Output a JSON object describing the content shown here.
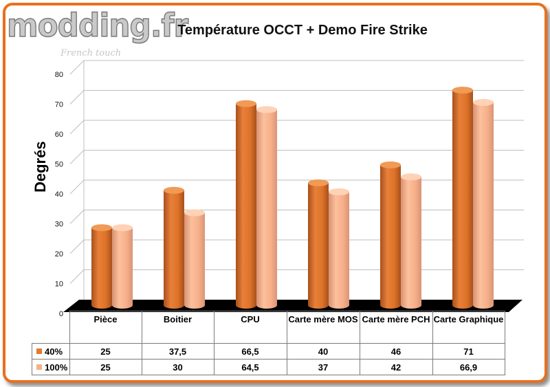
{
  "logo": {
    "text": "modding.fr",
    "tagline": "French touch"
  },
  "chart_data": {
    "type": "bar",
    "title": "Température OCCT + Demo Fire Strike",
    "xlabel": "",
    "ylabel": "Degrés",
    "ylim": [
      0,
      80
    ],
    "yticks": [
      0,
      10,
      20,
      30,
      40,
      50,
      60,
      70,
      80
    ],
    "categories": [
      "Pièce",
      "Boitier",
      "CPU",
      "Carte mère MOS",
      "Carte mère PCH",
      "Carte Graphique"
    ],
    "series": [
      {
        "name": "40%",
        "values": [
          25,
          37.5,
          66.5,
          40,
          46,
          71
        ],
        "labels": [
          "25",
          "37,5",
          "66,5",
          "40",
          "46",
          "71"
        ],
        "color": "#e07a2e"
      },
      {
        "name": "100%",
        "values": [
          25,
          30,
          64.5,
          37,
          42,
          66.9
        ],
        "labels": [
          "25",
          "30",
          "64,5",
          "37",
          "42",
          "66,9"
        ],
        "color": "#f5b08a"
      }
    ],
    "grid": true,
    "legend": "data table below chart"
  }
}
